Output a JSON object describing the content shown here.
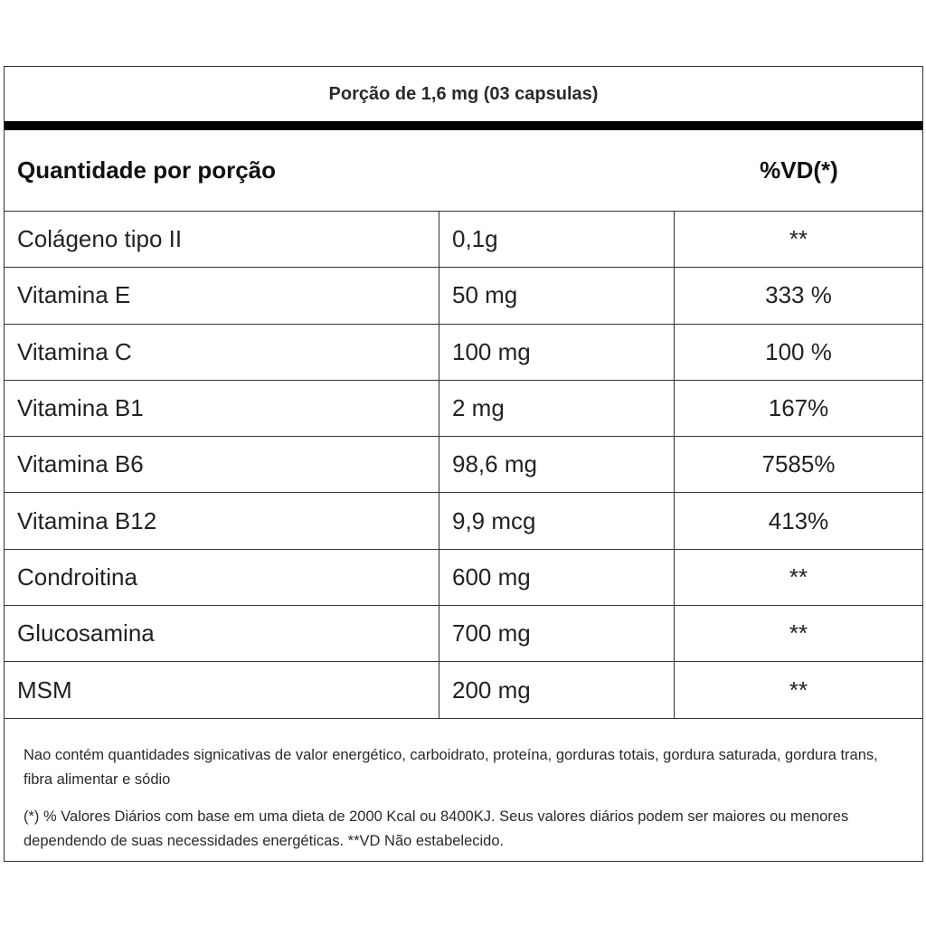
{
  "portion": "Porção de 1,6 mg (03 capsulas)",
  "header": {
    "quantity": "Quantidade por porção",
    "vd": "%VD(*)"
  },
  "rows": [
    {
      "name": "Colágeno tipo II",
      "amount": "0,1g",
      "vd": "**"
    },
    {
      "name": "Vitamina E",
      "amount": "50 mg",
      "vd": "333 %"
    },
    {
      "name": "Vitamina C",
      "amount": "100 mg",
      "vd": "100 %"
    },
    {
      "name": "Vitamina B1",
      "amount": "2 mg",
      "vd": "167%"
    },
    {
      "name": "Vitamina B6",
      "amount": "98,6 mg",
      "vd": "7585%"
    },
    {
      "name": "Vitamina B12",
      "amount": "9,9 mcg",
      "vd": "413%"
    },
    {
      "name": "Condroitina",
      "amount": "600 mg",
      "vd": "**"
    },
    {
      "name": "Glucosamina",
      "amount": "700 mg",
      "vd": "**"
    },
    {
      "name": "MSM",
      "amount": "200 mg",
      "vd": "**"
    }
  ],
  "footer": {
    "note1": "Nao contém quantidades signicativas de valor energético, carboidrato, proteína, gorduras totais, gordura saturada, gordura trans, fibra alimentar e sódio",
    "note2": "(*) % Valores Diários com base em uma dieta de 2000 Kcal ou 8400KJ. Seus valores diários podem ser maiores ou menores dependendo de suas necessidades energéticas. **VD Não estabelecido."
  }
}
